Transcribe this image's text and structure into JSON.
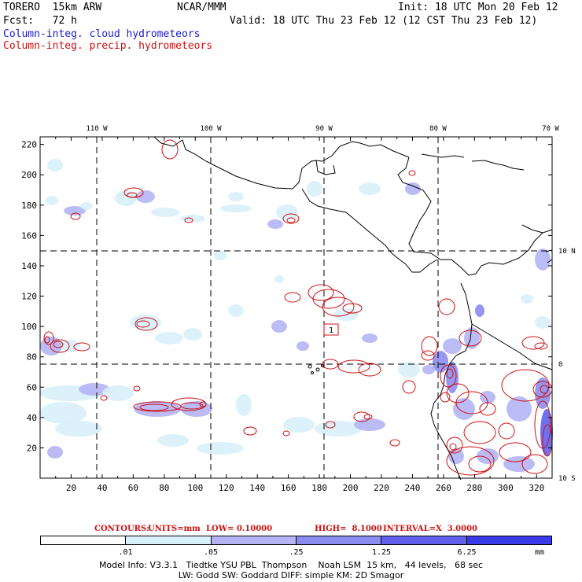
{
  "header": {
    "model": "TORERO  15km ARW",
    "org": "NCAR/MMM",
    "init": "Init: 18 UTC Mon 20 Feb 12",
    "fcst": "Fcst:   72 h",
    "valid": "Valid: 18 UTC Thu 23 Feb 12 (12 CST Thu 23 Feb 12)",
    "field_blue": "Column-integ. cloud hydrometeors",
    "field_red": "Column-integ. precip. hydrometeors"
  },
  "colors": {
    "cloud_fill": [
      "#ffffff",
      "#d8f0fa",
      "#b4b4f4",
      "#8c8cf0",
      "#6060ec",
      "#3a3ae8"
    ],
    "precip_contour": "#cc1111",
    "map_lines": "#000000"
  },
  "map": {
    "lon_labels": [
      "110 W",
      "100 W",
      "90 W",
      "80 W",
      "70 W"
    ],
    "lat_labels": [
      "10 N",
      "0",
      "10 S"
    ],
    "x_ticks": [
      "20",
      "40",
      "60",
      "80",
      "100",
      "120",
      "140",
      "160",
      "180",
      "200",
      "220",
      "240",
      "260",
      "280",
      "300",
      "320"
    ],
    "y_ticks": [
      "20",
      "40",
      "60",
      "80",
      "100",
      "120",
      "140",
      "160",
      "180",
      "200",
      "220"
    ],
    "max_label": "1"
  },
  "contours": {
    "label": "CONTOURS:",
    "units": "UNITS=mm",
    "low": "LOW= 0.10000",
    "high": "HIGH=  8.1000",
    "interval": "INTERVAL=X  3.0000"
  },
  "colorbar": {
    "levels": [
      ".01",
      ".05",
      ".25",
      "1.25",
      "6.25"
    ],
    "unit": "mm"
  },
  "footer": {
    "line1": "Model Info: V3.3.1   Tiedtke YSU PBL  Thompson    Noah LSM  15 km,   44 levels,   68 sec",
    "line2": "LW: Godd SW: Goddard DIFF: simple KM: 2D Smagor"
  }
}
